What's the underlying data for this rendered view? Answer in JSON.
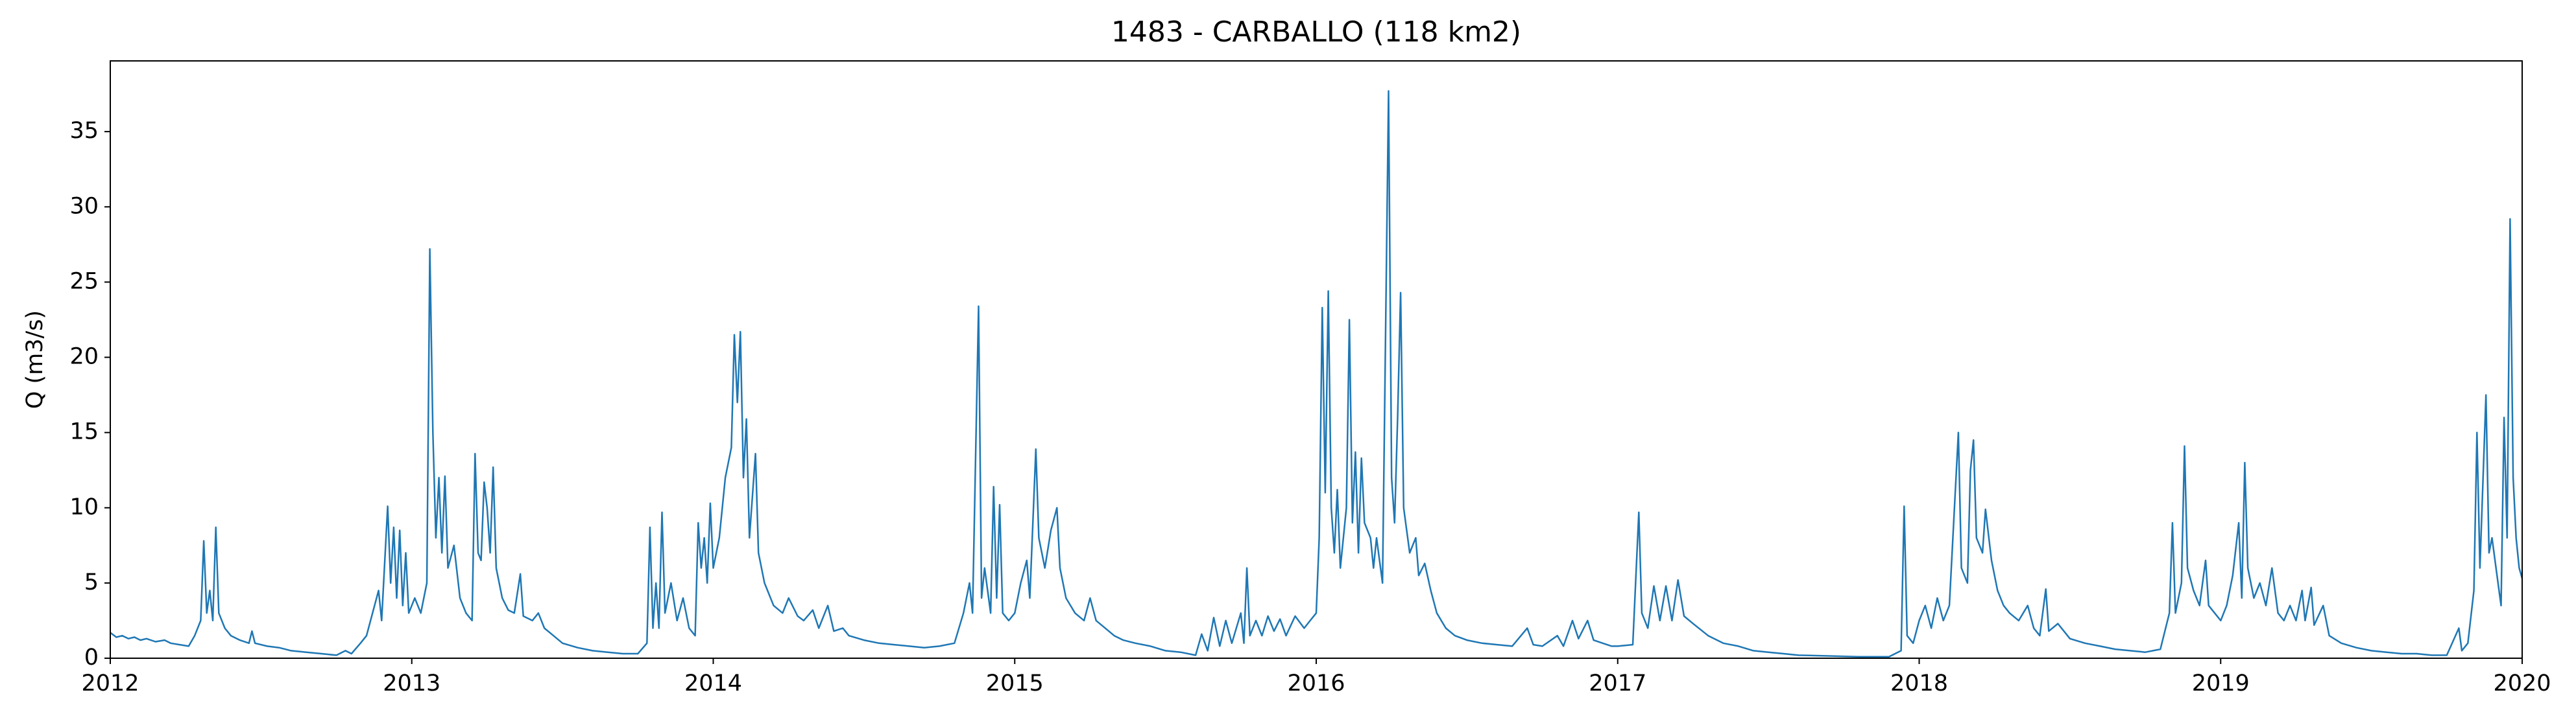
{
  "chart_data": {
    "type": "line",
    "title": "1483 - CARBALLO (118 km2)",
    "ylabel": "Q (m3/s)",
    "color": "#1f77b4",
    "xlim": [
      2012,
      2020
    ],
    "xticks": [
      2012,
      2013,
      2014,
      2015,
      2016,
      2017,
      2018,
      2019,
      2020
    ],
    "ylim": [
      0,
      39.7
    ],
    "yticks": [
      0,
      5,
      10,
      15,
      20,
      25,
      30,
      35
    ],
    "x": [
      2012.0,
      2012.02,
      2012.04,
      2012.06,
      2012.08,
      2012.1,
      2012.12,
      2012.15,
      2012.18,
      2012.2,
      2012.23,
      2012.26,
      2012.28,
      2012.3,
      2012.31,
      2012.32,
      2012.33,
      2012.34,
      2012.35,
      2012.36,
      2012.38,
      2012.4,
      2012.43,
      2012.46,
      2012.47,
      2012.48,
      2012.52,
      2012.56,
      2012.6,
      2012.65,
      2012.7,
      2012.75,
      2012.78,
      2012.8,
      2012.83,
      2012.85,
      2012.87,
      2012.89,
      2012.9,
      2012.92,
      2012.93,
      2012.94,
      2012.95,
      2012.96,
      2012.97,
      2012.98,
      2012.99,
      2013.01,
      2013.03,
      2013.05,
      2013.06,
      2013.07,
      2013.08,
      2013.09,
      2013.1,
      2013.11,
      2013.12,
      2013.14,
      2013.16,
      2013.18,
      2013.2,
      2013.21,
      2013.22,
      2013.23,
      2013.24,
      2013.25,
      2013.26,
      2013.27,
      2013.28,
      2013.3,
      2013.32,
      2013.34,
      2013.36,
      2013.37,
      2013.4,
      2013.42,
      2013.44,
      2013.47,
      2013.5,
      2013.55,
      2013.6,
      2013.65,
      2013.7,
      2013.75,
      2013.78,
      2013.79,
      2013.8,
      2013.81,
      2013.82,
      2013.83,
      2013.84,
      2013.86,
      2013.88,
      2013.9,
      2013.92,
      2013.94,
      2013.95,
      2013.96,
      2013.97,
      2013.98,
      2013.99,
      2014.0,
      2014.02,
      2014.04,
      2014.06,
      2014.07,
      2014.08,
      2014.09,
      2014.1,
      2014.11,
      2014.12,
      2014.14,
      2014.15,
      2014.17,
      2014.2,
      2014.23,
      2014.25,
      2014.28,
      2014.3,
      2014.33,
      2014.35,
      2014.38,
      2014.4,
      2014.43,
      2014.45,
      2014.5,
      2014.55,
      2014.6,
      2014.65,
      2014.7,
      2014.75,
      2014.8,
      2014.83,
      2014.85,
      2014.86,
      2014.88,
      2014.89,
      2014.9,
      2014.92,
      2014.93,
      2014.94,
      2014.95,
      2014.96,
      2014.98,
      2015.0,
      2015.02,
      2015.04,
      2015.05,
      2015.07,
      2015.08,
      2015.1,
      2015.12,
      2015.14,
      2015.15,
      2015.17,
      2015.2,
      2015.23,
      2015.25,
      2015.27,
      2015.3,
      2015.33,
      2015.36,
      2015.4,
      2015.45,
      2015.5,
      2015.55,
      2015.6,
      2015.62,
      2015.64,
      2015.66,
      2015.68,
      2015.7,
      2015.72,
      2015.75,
      2015.76,
      2015.77,
      2015.78,
      2015.8,
      2015.82,
      2015.84,
      2015.86,
      2015.88,
      2015.9,
      2015.93,
      2015.96,
      2015.98,
      2016.0,
      2016.01,
      2016.02,
      2016.03,
      2016.04,
      2016.05,
      2016.06,
      2016.07,
      2016.08,
      2016.1,
      2016.11,
      2016.12,
      2016.13,
      2016.14,
      2016.15,
      2016.16,
      2016.18,
      2016.19,
      2016.2,
      2016.22,
      2016.24,
      2016.25,
      2016.26,
      2016.27,
      2016.28,
      2016.29,
      2016.31,
      2016.33,
      2016.34,
      2016.36,
      2016.38,
      2016.4,
      2016.43,
      2016.46,
      2016.5,
      2016.55,
      2016.6,
      2016.65,
      2016.7,
      2016.72,
      2016.75,
      2016.8,
      2016.82,
      2016.85,
      2016.87,
      2016.9,
      2016.92,
      2016.95,
      2016.98,
      2017.0,
      2017.05,
      2017.07,
      2017.08,
      2017.1,
      2017.12,
      2017.14,
      2017.16,
      2017.18,
      2017.2,
      2017.22,
      2017.25,
      2017.3,
      2017.35,
      2017.4,
      2017.45,
      2017.5,
      2017.55,
      2017.6,
      2017.7,
      2017.8,
      2017.9,
      2017.94,
      2017.95,
      2017.96,
      2017.98,
      2018.0,
      2018.02,
      2018.04,
      2018.06,
      2018.08,
      2018.1,
      2018.13,
      2018.14,
      2018.16,
      2018.17,
      2018.18,
      2018.19,
      2018.21,
      2018.22,
      2018.24,
      2018.26,
      2018.28,
      2018.3,
      2018.33,
      2018.36,
      2018.38,
      2018.4,
      2018.42,
      2018.43,
      2018.46,
      2018.5,
      2018.55,
      2018.6,
      2018.65,
      2018.7,
      2018.75,
      2018.8,
      2018.83,
      2018.84,
      2018.85,
      2018.87,
      2018.88,
      2018.89,
      2018.91,
      2018.93,
      2018.95,
      2018.96,
      2018.98,
      2019.0,
      2019.02,
      2019.04,
      2019.06,
      2019.07,
      2019.08,
      2019.09,
      2019.11,
      2019.13,
      2019.15,
      2019.17,
      2019.19,
      2019.21,
      2019.23,
      2019.25,
      2019.27,
      2019.28,
      2019.3,
      2019.31,
      2019.34,
      2019.36,
      2019.4,
      2019.45,
      2019.5,
      2019.55,
      2019.6,
      2019.65,
      2019.7,
      2019.75,
      2019.79,
      2019.8,
      2019.82,
      2019.84,
      2019.85,
      2019.86,
      2019.88,
      2019.89,
      2019.9,
      2019.92,
      2019.93,
      2019.94,
      2019.95,
      2019.96,
      2019.97,
      2019.98,
      2019.99,
      2020.0
    ],
    "values": [
      1.7,
      1.4,
      1.5,
      1.3,
      1.4,
      1.2,
      1.3,
      1.1,
      1.2,
      1.0,
      0.9,
      0.8,
      1.5,
      2.5,
      7.8,
      3.0,
      4.5,
      2.5,
      8.7,
      3.0,
      2.0,
      1.5,
      1.2,
      1.0,
      1.8,
      1.0,
      0.8,
      0.7,
      0.5,
      0.4,
      0.3,
      0.2,
      0.5,
      0.3,
      1.0,
      1.5,
      3.0,
      4.5,
      2.5,
      10.1,
      5.0,
      8.7,
      4.0,
      8.5,
      3.5,
      7.0,
      3.0,
      4.0,
      3.0,
      5.0,
      27.2,
      15,
      8,
      12,
      7,
      12.1,
      6,
      7.5,
      4,
      3,
      2.5,
      13.6,
      7,
      6.5,
      11.7,
      10,
      7,
      12.7,
      6,
      4,
      3.2,
      3.0,
      5.6,
      2.8,
      2.5,
      3.0,
      2.0,
      1.5,
      1.0,
      0.7,
      0.5,
      0.4,
      0.3,
      0.3,
      1.0,
      8.7,
      2,
      5.0,
      2,
      9.7,
      3.0,
      5.0,
      2.5,
      4.0,
      2.0,
      1.5,
      9.0,
      6,
      8,
      5,
      10.3,
      6.0,
      8,
      12,
      14,
      21.5,
      17,
      21.7,
      12,
      15.9,
      8,
      13.6,
      7,
      5.0,
      3.5,
      3.0,
      4.0,
      2.8,
      2.5,
      3.2,
      2.0,
      3.5,
      1.8,
      2.0,
      1.5,
      1.2,
      1.0,
      0.9,
      0.8,
      0.7,
      0.8,
      1.0,
      3.0,
      5.0,
      3,
      23.4,
      4,
      6,
      3.0,
      11.4,
      4,
      10.2,
      3,
      2.5,
      3.0,
      5.0,
      6.5,
      4,
      13.9,
      8,
      6,
      8.5,
      10,
      6,
      4.0,
      3.0,
      2.5,
      4.0,
      2.5,
      2.0,
      1.5,
      1.2,
      1.0,
      0.8,
      0.5,
      0.4,
      0.2,
      1.6,
      0.5,
      2.7,
      0.8,
      2.5,
      1.0,
      3.0,
      1.0,
      6.0,
      1.5,
      2.5,
      1.5,
      2.8,
      1.8,
      2.6,
      1.5,
      2.8,
      2.0,
      2.5,
      3.0,
      8,
      23.3,
      11,
      24.4,
      10,
      7,
      11.2,
      6,
      10,
      22.5,
      9,
      13.7,
      7,
      13.3,
      9,
      8,
      6,
      8,
      5,
      37.7,
      12,
      9,
      16,
      24.3,
      10,
      7,
      8.0,
      5.5,
      6.3,
      4.5,
      3.0,
      2.0,
      1.5,
      1.2,
      1.0,
      0.9,
      0.8,
      2.0,
      0.9,
      0.8,
      1.5,
      0.8,
      2.5,
      1.3,
      2.5,
      1.2,
      1.0,
      0.8,
      0.8,
      0.9,
      9.7,
      3,
      2.0,
      4.8,
      2.5,
      4.8,
      2.5,
      5.2,
      2.8,
      2.3,
      1.5,
      1.0,
      0.8,
      0.5,
      0.4,
      0.3,
      0.2,
      0.15,
      0.1,
      0.1,
      0.5,
      10.1,
      1.5,
      1.0,
      2.5,
      3.5,
      2.0,
      4.0,
      2.5,
      3.5,
      15.0,
      6,
      5,
      12.5,
      14.5,
      8,
      7,
      9.9,
      6.5,
      4.5,
      3.5,
      3.0,
      2.5,
      3.5,
      2.0,
      1.5,
      4.6,
      1.8,
      2.3,
      1.3,
      1.0,
      0.8,
      0.6,
      0.5,
      0.4,
      0.6,
      3.0,
      9.0,
      3,
      5.0,
      14.1,
      6,
      4.5,
      3.5,
      6.5,
      3.5,
      3.0,
      2.5,
      3.5,
      5.5,
      9.0,
      4,
      13.0,
      6,
      4.0,
      5.0,
      3.5,
      6.0,
      3.0,
      2.5,
      3.5,
      2.5,
      4.5,
      2.5,
      4.7,
      2.2,
      3.5,
      1.5,
      1.0,
      0.7,
      0.5,
      0.4,
      0.3,
      0.3,
      0.2,
      0.2,
      2.0,
      0.5,
      1.0,
      4.5,
      15.0,
      6,
      17.5,
      7,
      8,
      5,
      3.5,
      16,
      8,
      29.2,
      12,
      8,
      6,
      5.3
    ]
  }
}
